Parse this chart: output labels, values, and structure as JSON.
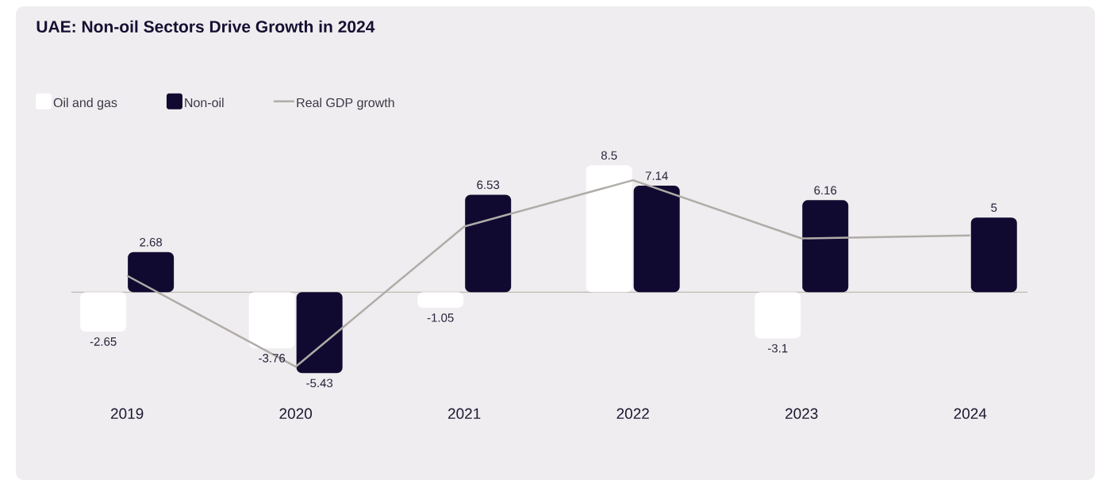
{
  "chart_data": {
    "type": "bar",
    "title": "UAE: Non-oil Sectors Drive Growth in 2024",
    "categories": [
      "2019",
      "2020",
      "2021",
      "2022",
      "2023",
      "2024"
    ],
    "legend": "top left",
    "series": [
      {
        "name": "Oil and gas",
        "color": "#ffffff",
        "values": [
          -2.65,
          -3.76,
          -1.05,
          8.5,
          -3.1,
          null
        ],
        "value_labels": [
          "-2.65",
          "-3.76",
          "-1.05",
          "8.5",
          "-3.1",
          null
        ]
      },
      {
        "name": "Non-oil",
        "color": "#110a30",
        "values": [
          2.68,
          -5.43,
          6.53,
          7.14,
          6.16,
          5
        ],
        "value_labels": [
          "2.68",
          "-5.43",
          "6.53",
          "7.14",
          "6.16",
          "5"
        ]
      },
      {
        "name": "Real GDP growth",
        "type": "line",
        "color": "#b0aca8",
        "values": [
          1.1,
          -5.0,
          4.4,
          7.5,
          3.6,
          3.8
        ]
      }
    ]
  }
}
